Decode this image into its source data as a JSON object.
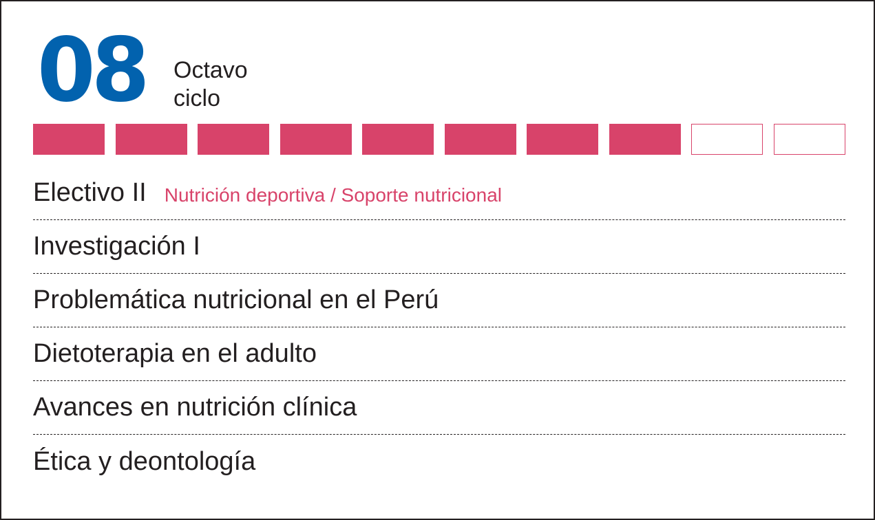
{
  "colors": {
    "number": "#0262ae",
    "accent": "#d8436a",
    "text": "#231f20",
    "divider": "#231f20"
  },
  "header": {
    "number": "08",
    "label_line1": "Octavo",
    "label_line2": "ciclo"
  },
  "progress": {
    "completed": 8,
    "total": 10
  },
  "courses": [
    {
      "name": "Electivo II",
      "note": "Nutrición deportiva / Soporte nutricional"
    },
    {
      "name": "Investigación I"
    },
    {
      "name": "Problemática nutricional en el Perú"
    },
    {
      "name": "Dietoterapia en el adulto"
    },
    {
      "name": "Avances en nutrición clínica"
    },
    {
      "name": "Ética y deontología"
    }
  ]
}
